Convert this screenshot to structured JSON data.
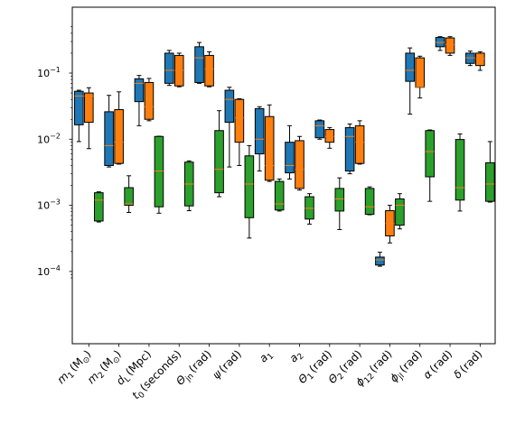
{
  "chart_data": {
    "type": "box",
    "yscale": "log",
    "ylim": [
      8e-05,
      0.55
    ],
    "y_ticks": [
      {
        "value": 0.0001,
        "base": "10",
        "exp": "−4"
      },
      {
        "value": 0.001,
        "base": "10",
        "exp": "−3"
      },
      {
        "value": 0.01,
        "base": "10",
        "exp": "−2"
      },
      {
        "value": 0.1,
        "base": "10",
        "exp": "−1"
      }
    ],
    "categories": [
      {
        "sym": "m",
        "sub": "1",
        "unit": "(M",
        "unit_sub": "⊙",
        "unit_end": ")"
      },
      {
        "sym": "m",
        "sub": "2",
        "unit": "(M",
        "unit_sub": "⊙",
        "unit_end": ")"
      },
      {
        "sym": "d",
        "sub": "L",
        "unit": "(Mpc)",
        "unit_sub": "",
        "unit_end": ""
      },
      {
        "sym": "t",
        "sub": "0",
        "unit": "(seconds)",
        "unit_sub": "",
        "unit_end": ""
      },
      {
        "sym": "Θ",
        "sub": "jn",
        "unit": "(rad)",
        "unit_sub": "",
        "unit_end": ""
      },
      {
        "sym": "ψ",
        "sub": "",
        "unit": "(rad)",
        "unit_sub": "",
        "unit_end": ""
      },
      {
        "sym": "a",
        "sub": "1",
        "unit": "",
        "unit_sub": "",
        "unit_end": ""
      },
      {
        "sym": "a",
        "sub": "2",
        "unit": "",
        "unit_sub": "",
        "unit_end": ""
      },
      {
        "sym": "Θ",
        "sub": "1",
        "unit": "(rad)",
        "unit_sub": "",
        "unit_end": ""
      },
      {
        "sym": "Θ",
        "sub": "2",
        "unit": "(rad)",
        "unit_sub": "",
        "unit_end": ""
      },
      {
        "sym": "ϕ",
        "sub": "12",
        "unit": "(rad)",
        "unit_sub": "",
        "unit_end": ""
      },
      {
        "sym": "ϕ",
        "sub": "jl",
        "unit": "(rad)",
        "unit_sub": "",
        "unit_end": ""
      },
      {
        "sym": "α",
        "sub": "",
        "unit": "(rad)",
        "unit_sub": "",
        "unit_end": ""
      },
      {
        "sym": "δ",
        "sub": "",
        "unit": "(rad)",
        "unit_sub": "",
        "unit_end": ""
      }
    ],
    "series": [
      {
        "color": "#1f77b4",
        "boxes": [
          {
            "whislo": 0.0092,
            "q1": 0.0165,
            "med": 0.045,
            "q3": 0.053,
            "whishi": 0.055
          },
          {
            "whislo": 0.0038,
            "q1": 0.004,
            "med": 0.008,
            "q3": 0.026,
            "whishi": 0.046
          },
          {
            "whislo": 0.016,
            "q1": 0.037,
            "med": 0.07,
            "q3": 0.082,
            "whishi": 0.092
          },
          {
            "whislo": 0.065,
            "q1": 0.07,
            "med": 0.11,
            "q3": 0.2,
            "whishi": 0.22
          },
          {
            "whislo": 0.07,
            "q1": 0.072,
            "med": 0.17,
            "q3": 0.25,
            "whishi": 0.29
          },
          {
            "whislo": 0.0038,
            "q1": 0.018,
            "med": 0.04,
            "q3": 0.055,
            "whishi": 0.061
          },
          {
            "whislo": 0.0033,
            "q1": 0.006,
            "med": 0.01,
            "q3": 0.029,
            "whishi": 0.031
          },
          {
            "whislo": 0.0025,
            "q1": 0.0031,
            "med": 0.004,
            "q3": 0.009,
            "whishi": 0.016
          },
          {
            "whislo": 0.01,
            "q1": 0.0105,
            "med": 0.016,
            "q3": 0.019,
            "whishi": 0.0195
          },
          {
            "whislo": 0.003,
            "q1": 0.0033,
            "med": 0.011,
            "q3": 0.015,
            "whishi": 0.017
          },
          {
            "whislo": 0.00012,
            "q1": 0.000125,
            "med": 0.00015,
            "q3": 0.000165,
            "whishi": 0.000195
          },
          {
            "whislo": 0.024,
            "q1": 0.075,
            "med": 0.11,
            "q3": 0.2,
            "whishi": 0.24
          },
          {
            "whislo": 0.22,
            "q1": 0.25,
            "med": 0.29,
            "q3": 0.345,
            "whishi": 0.355
          },
          {
            "whislo": 0.13,
            "q1": 0.14,
            "med": 0.17,
            "q3": 0.2,
            "whishi": 0.215
          }
        ]
      },
      {
        "color": "#ff7f0e",
        "boxes": [
          {
            "whislo": 0.0072,
            "q1": 0.018,
            "med": 0.045,
            "q3": 0.05,
            "whishi": 0.06
          },
          {
            "whislo": 0.0042,
            "q1": 0.0043,
            "med": 0.009,
            "q3": 0.028,
            "whishi": 0.052
          },
          {
            "whislo": 0.019,
            "q1": 0.02,
            "med": 0.031,
            "q3": 0.072,
            "whishi": 0.083
          },
          {
            "whislo": 0.062,
            "q1": 0.064,
            "med": 0.11,
            "q3": 0.185,
            "whishi": 0.2
          },
          {
            "whislo": 0.062,
            "q1": 0.064,
            "med": 0.115,
            "q3": 0.185,
            "whishi": 0.21
          },
          {
            "whislo": 0.004,
            "q1": 0.009,
            "med": 0.021,
            "q3": 0.04,
            "whishi": 0.041
          },
          {
            "whislo": 0.0023,
            "q1": 0.0024,
            "med": 0.004,
            "q3": 0.022,
            "whishi": 0.033
          },
          {
            "whislo": 0.0017,
            "q1": 0.0018,
            "med": 0.0035,
            "q3": 0.0095,
            "whishi": 0.011
          },
          {
            "whislo": 0.0073,
            "q1": 0.009,
            "med": 0.011,
            "q3": 0.014,
            "whishi": 0.015
          },
          {
            "whislo": 0.0042,
            "q1": 0.0043,
            "med": 0.009,
            "q3": 0.016,
            "whishi": 0.019
          },
          {
            "whislo": 0.00027,
            "q1": 0.000345,
            "med": 0.00053,
            "q3": 0.00083,
            "whishi": 0.001
          },
          {
            "whislo": 0.042,
            "q1": 0.061,
            "med": 0.062,
            "q3": 0.17,
            "whishi": 0.18
          },
          {
            "whislo": 0.185,
            "q1": 0.2,
            "med": 0.27,
            "q3": 0.34,
            "whishi": 0.355
          },
          {
            "whislo": 0.11,
            "q1": 0.13,
            "med": 0.165,
            "q3": 0.2,
            "whishi": 0.21
          }
        ]
      },
      {
        "color": "#2ca02c",
        "boxes": [
          {
            "whislo": 0.00056,
            "q1": 0.00058,
            "med": 0.0012,
            "q3": 0.00155,
            "whishi": 0.0016
          },
          {
            "whislo": 0.00078,
            "q1": 0.001,
            "med": 0.00105,
            "q3": 0.00185,
            "whishi": 0.0028
          },
          {
            "whislo": 0.00076,
            "q1": 0.00095,
            "med": 0.0033,
            "q3": 0.011,
            "whishi": 0.0111
          },
          {
            "whislo": 0.00083,
            "q1": 0.00098,
            "med": 0.0021,
            "q3": 0.0045,
            "whishi": 0.0047
          },
          {
            "whislo": 0.00135,
            "q1": 0.00155,
            "med": 0.0035,
            "q3": 0.0135,
            "whishi": 0.027
          },
          {
            "whislo": 0.00032,
            "q1": 0.00065,
            "med": 0.0021,
            "q3": 0.0056,
            "whishi": 0.008
          },
          {
            "whislo": 0.00082,
            "q1": 0.00085,
            "med": 0.00105,
            "q3": 0.0023,
            "whishi": 0.0025
          },
          {
            "whislo": 0.00052,
            "q1": 0.00062,
            "med": 0.0009,
            "q3": 0.00135,
            "whishi": 0.0015
          },
          {
            "whislo": 0.00043,
            "q1": 0.00082,
            "med": 0.00125,
            "q3": 0.0018,
            "whishi": 0.0026
          },
          {
            "whislo": 0.00072,
            "q1": 0.00073,
            "med": 0.00095,
            "q3": 0.0018,
            "whishi": 0.0019
          },
          {
            "whislo": 0.00044,
            "q1": 0.0005,
            "med": 0.001,
            "q3": 0.00125,
            "whishi": 0.0015
          },
          {
            "whislo": 0.00115,
            "q1": 0.0027,
            "med": 0.0065,
            "q3": 0.0135,
            "whishi": 0.0138
          },
          {
            "whislo": 0.00082,
            "q1": 0.0012,
            "med": 0.00185,
            "q3": 0.0099,
            "whishi": 0.012
          },
          {
            "whislo": 0.00112,
            "q1": 0.00115,
            "med": 0.0021,
            "q3": 0.0044,
            "whishi": 0.0092
          }
        ]
      }
    ],
    "median_color": "#ff7f0e",
    "grid": false,
    "legend": "none"
  }
}
